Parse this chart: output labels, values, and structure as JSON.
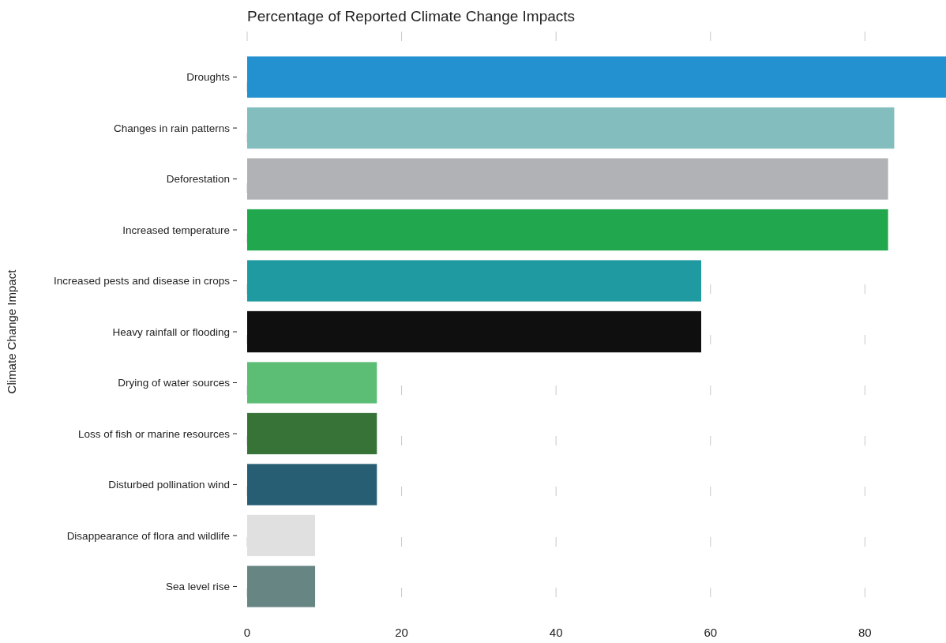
{
  "chart_data": {
    "type": "bar",
    "orientation": "horizontal",
    "title": "Percentage of Reported Climate Change Impacts",
    "ylabel": "Climate Change Impact",
    "categories": [
      "Droughts",
      "Changes in rain patterns",
      "Deforestation",
      "Increased temperature",
      "Increased pests and disease in crops",
      "Heavy rainfall or flooding",
      "Drying of water sources",
      "Loss of fish or marine resources",
      "Disturbed pollination wind",
      "Disappearance of flora and wildlife",
      "Sea level rise"
    ],
    "values": [
      90.5,
      83.8,
      83,
      83,
      58.8,
      58.8,
      16.8,
      16.8,
      16.8,
      8.8,
      8.8
    ],
    "colors": [
      "#2390d0",
      "#83bdbd",
      "#b1b2b6",
      "#21a84f",
      "#1f9aa0",
      "#0f0f0f",
      "#5cbd75",
      "#377337",
      "#275e73",
      "#e0e0e0",
      "#668583"
    ],
    "xlim": [
      0,
      90.5
    ],
    "xticks": [
      0,
      20,
      40,
      60,
      80
    ],
    "grid": "x"
  }
}
